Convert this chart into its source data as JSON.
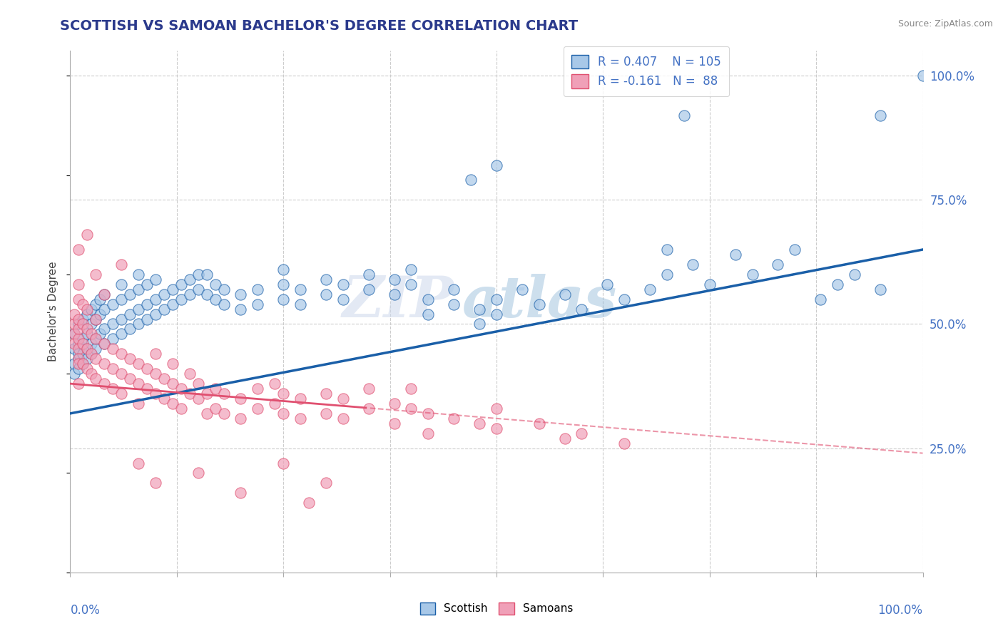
{
  "title": "SCOTTISH VS SAMOAN BACHELOR'S DEGREE CORRELATION CHART",
  "source": "Source: ZipAtlas.com",
  "ylabel": "Bachelor's Degree",
  "watermark": "ZIPatlas",
  "scottish_color": "#a8c8e8",
  "samoan_color": "#f0a0b8",
  "trendline_scottish_color": "#1a5fa8",
  "trendline_samoan_color": "#e05070",
  "background_color": "#ffffff",
  "grid_color": "#cccccc",
  "title_color": "#2b3a8c",
  "axis_label_color": "#4472c4",
  "legend_text_color": "#4472c4",
  "xlim": [
    0.0,
    1.0
  ],
  "ylim": [
    0.0,
    1.05
  ],
  "yticks_right": [
    0.25,
    0.5,
    0.75,
    1.0
  ],
  "ytick_labels_right": [
    "25.0%",
    "50.0%",
    "75.0%",
    "100.0%"
  ],
  "scottish_points": [
    [
      0.005,
      0.42
    ],
    [
      0.005,
      0.45
    ],
    [
      0.005,
      0.48
    ],
    [
      0.005,
      0.4
    ],
    [
      0.01,
      0.43
    ],
    [
      0.01,
      0.46
    ],
    [
      0.01,
      0.5
    ],
    [
      0.01,
      0.44
    ],
    [
      0.01,
      0.41
    ],
    [
      0.015,
      0.44
    ],
    [
      0.015,
      0.47
    ],
    [
      0.015,
      0.51
    ],
    [
      0.015,
      0.42
    ],
    [
      0.02,
      0.45
    ],
    [
      0.02,
      0.48
    ],
    [
      0.02,
      0.52
    ],
    [
      0.02,
      0.43
    ],
    [
      0.025,
      0.46
    ],
    [
      0.025,
      0.5
    ],
    [
      0.025,
      0.53
    ],
    [
      0.025,
      0.44
    ],
    [
      0.03,
      0.47
    ],
    [
      0.03,
      0.51
    ],
    [
      0.03,
      0.54
    ],
    [
      0.03,
      0.45
    ],
    [
      0.035,
      0.48
    ],
    [
      0.035,
      0.52
    ],
    [
      0.035,
      0.55
    ],
    [
      0.04,
      0.49
    ],
    [
      0.04,
      0.53
    ],
    [
      0.04,
      0.56
    ],
    [
      0.04,
      0.46
    ],
    [
      0.05,
      0.5
    ],
    [
      0.05,
      0.54
    ],
    [
      0.05,
      0.47
    ],
    [
      0.06,
      0.51
    ],
    [
      0.06,
      0.55
    ],
    [
      0.06,
      0.58
    ],
    [
      0.06,
      0.48
    ],
    [
      0.07,
      0.52
    ],
    [
      0.07,
      0.56
    ],
    [
      0.07,
      0.49
    ],
    [
      0.08,
      0.53
    ],
    [
      0.08,
      0.57
    ],
    [
      0.08,
      0.6
    ],
    [
      0.08,
      0.5
    ],
    [
      0.09,
      0.54
    ],
    [
      0.09,
      0.58
    ],
    [
      0.09,
      0.51
    ],
    [
      0.1,
      0.55
    ],
    [
      0.1,
      0.59
    ],
    [
      0.1,
      0.52
    ],
    [
      0.11,
      0.56
    ],
    [
      0.11,
      0.53
    ],
    [
      0.12,
      0.57
    ],
    [
      0.12,
      0.54
    ],
    [
      0.13,
      0.58
    ],
    [
      0.13,
      0.55
    ],
    [
      0.14,
      0.59
    ],
    [
      0.14,
      0.56
    ],
    [
      0.15,
      0.6
    ],
    [
      0.15,
      0.57
    ],
    [
      0.16,
      0.56
    ],
    [
      0.16,
      0.6
    ],
    [
      0.17,
      0.55
    ],
    [
      0.17,
      0.58
    ],
    [
      0.18,
      0.54
    ],
    [
      0.18,
      0.57
    ],
    [
      0.2,
      0.56
    ],
    [
      0.2,
      0.53
    ],
    [
      0.22,
      0.57
    ],
    [
      0.22,
      0.54
    ],
    [
      0.25,
      0.58
    ],
    [
      0.25,
      0.55
    ],
    [
      0.25,
      0.61
    ],
    [
      0.27,
      0.57
    ],
    [
      0.27,
      0.54
    ],
    [
      0.3,
      0.59
    ],
    [
      0.3,
      0.56
    ],
    [
      0.32,
      0.58
    ],
    [
      0.32,
      0.55
    ],
    [
      0.35,
      0.6
    ],
    [
      0.35,
      0.57
    ],
    [
      0.38,
      0.59
    ],
    [
      0.38,
      0.56
    ],
    [
      0.4,
      0.61
    ],
    [
      0.4,
      0.58
    ],
    [
      0.42,
      0.55
    ],
    [
      0.42,
      0.52
    ],
    [
      0.45,
      0.57
    ],
    [
      0.45,
      0.54
    ],
    [
      0.48,
      0.53
    ],
    [
      0.48,
      0.5
    ],
    [
      0.5,
      0.55
    ],
    [
      0.5,
      0.52
    ],
    [
      0.53,
      0.57
    ],
    [
      0.55,
      0.54
    ],
    [
      0.58,
      0.56
    ],
    [
      0.6,
      0.53
    ],
    [
      0.63,
      0.58
    ],
    [
      0.65,
      0.55
    ],
    [
      0.68,
      0.57
    ],
    [
      0.7,
      0.6
    ],
    [
      0.7,
      0.65
    ],
    [
      0.73,
      0.62
    ],
    [
      0.75,
      0.58
    ],
    [
      0.78,
      0.64
    ],
    [
      0.8,
      0.6
    ],
    [
      0.83,
      0.62
    ],
    [
      0.85,
      0.65
    ],
    [
      0.88,
      0.55
    ],
    [
      0.9,
      0.58
    ],
    [
      0.92,
      0.6
    ],
    [
      0.95,
      0.57
    ],
    [
      0.72,
      0.92
    ],
    [
      0.95,
      0.92
    ],
    [
      1.0,
      1.0
    ],
    [
      0.5,
      0.82
    ],
    [
      0.47,
      0.79
    ]
  ],
  "samoan_points": [
    [
      0.005,
      0.48
    ],
    [
      0.005,
      0.5
    ],
    [
      0.005,
      0.46
    ],
    [
      0.005,
      0.52
    ],
    [
      0.01,
      0.47
    ],
    [
      0.01,
      0.49
    ],
    [
      0.01,
      0.45
    ],
    [
      0.01,
      0.51
    ],
    [
      0.01,
      0.43
    ],
    [
      0.01,
      0.55
    ],
    [
      0.01,
      0.42
    ],
    [
      0.01,
      0.58
    ],
    [
      0.01,
      0.38
    ],
    [
      0.015,
      0.5
    ],
    [
      0.015,
      0.46
    ],
    [
      0.015,
      0.42
    ],
    [
      0.015,
      0.54
    ],
    [
      0.02,
      0.49
    ],
    [
      0.02,
      0.45
    ],
    [
      0.02,
      0.41
    ],
    [
      0.02,
      0.53
    ],
    [
      0.025,
      0.48
    ],
    [
      0.025,
      0.44
    ],
    [
      0.025,
      0.4
    ],
    [
      0.03,
      0.47
    ],
    [
      0.03,
      0.43
    ],
    [
      0.03,
      0.39
    ],
    [
      0.03,
      0.51
    ],
    [
      0.04,
      0.46
    ],
    [
      0.04,
      0.42
    ],
    [
      0.04,
      0.38
    ],
    [
      0.05,
      0.45
    ],
    [
      0.05,
      0.41
    ],
    [
      0.05,
      0.37
    ],
    [
      0.06,
      0.44
    ],
    [
      0.06,
      0.4
    ],
    [
      0.06,
      0.36
    ],
    [
      0.07,
      0.43
    ],
    [
      0.07,
      0.39
    ],
    [
      0.08,
      0.42
    ],
    [
      0.08,
      0.38
    ],
    [
      0.08,
      0.34
    ],
    [
      0.09,
      0.41
    ],
    [
      0.09,
      0.37
    ],
    [
      0.1,
      0.4
    ],
    [
      0.1,
      0.36
    ],
    [
      0.1,
      0.44
    ],
    [
      0.11,
      0.39
    ],
    [
      0.11,
      0.35
    ],
    [
      0.12,
      0.38
    ],
    [
      0.12,
      0.34
    ],
    [
      0.12,
      0.42
    ],
    [
      0.13,
      0.37
    ],
    [
      0.13,
      0.33
    ],
    [
      0.14,
      0.36
    ],
    [
      0.14,
      0.4
    ],
    [
      0.15,
      0.35
    ],
    [
      0.15,
      0.38
    ],
    [
      0.16,
      0.36
    ],
    [
      0.16,
      0.32
    ],
    [
      0.17,
      0.37
    ],
    [
      0.17,
      0.33
    ],
    [
      0.18,
      0.36
    ],
    [
      0.18,
      0.32
    ],
    [
      0.2,
      0.35
    ],
    [
      0.2,
      0.31
    ],
    [
      0.22,
      0.37
    ],
    [
      0.22,
      0.33
    ],
    [
      0.24,
      0.38
    ],
    [
      0.24,
      0.34
    ],
    [
      0.25,
      0.36
    ],
    [
      0.25,
      0.32
    ],
    [
      0.27,
      0.35
    ],
    [
      0.27,
      0.31
    ],
    [
      0.3,
      0.36
    ],
    [
      0.3,
      0.32
    ],
    [
      0.32,
      0.35
    ],
    [
      0.32,
      0.31
    ],
    [
      0.35,
      0.33
    ],
    [
      0.35,
      0.37
    ],
    [
      0.38,
      0.34
    ],
    [
      0.38,
      0.3
    ],
    [
      0.4,
      0.33
    ],
    [
      0.4,
      0.37
    ],
    [
      0.42,
      0.32
    ],
    [
      0.42,
      0.28
    ],
    [
      0.45,
      0.31
    ],
    [
      0.48,
      0.3
    ],
    [
      0.5,
      0.29
    ],
    [
      0.5,
      0.33
    ],
    [
      0.55,
      0.3
    ],
    [
      0.58,
      0.27
    ],
    [
      0.6,
      0.28
    ],
    [
      0.65,
      0.26
    ],
    [
      0.03,
      0.6
    ],
    [
      0.04,
      0.56
    ],
    [
      0.06,
      0.62
    ],
    [
      0.02,
      0.68
    ],
    [
      0.01,
      0.65
    ],
    [
      0.08,
      0.22
    ],
    [
      0.1,
      0.18
    ],
    [
      0.15,
      0.2
    ],
    [
      0.2,
      0.16
    ],
    [
      0.25,
      0.22
    ],
    [
      0.3,
      0.18
    ],
    [
      0.28,
      0.14
    ]
  ]
}
